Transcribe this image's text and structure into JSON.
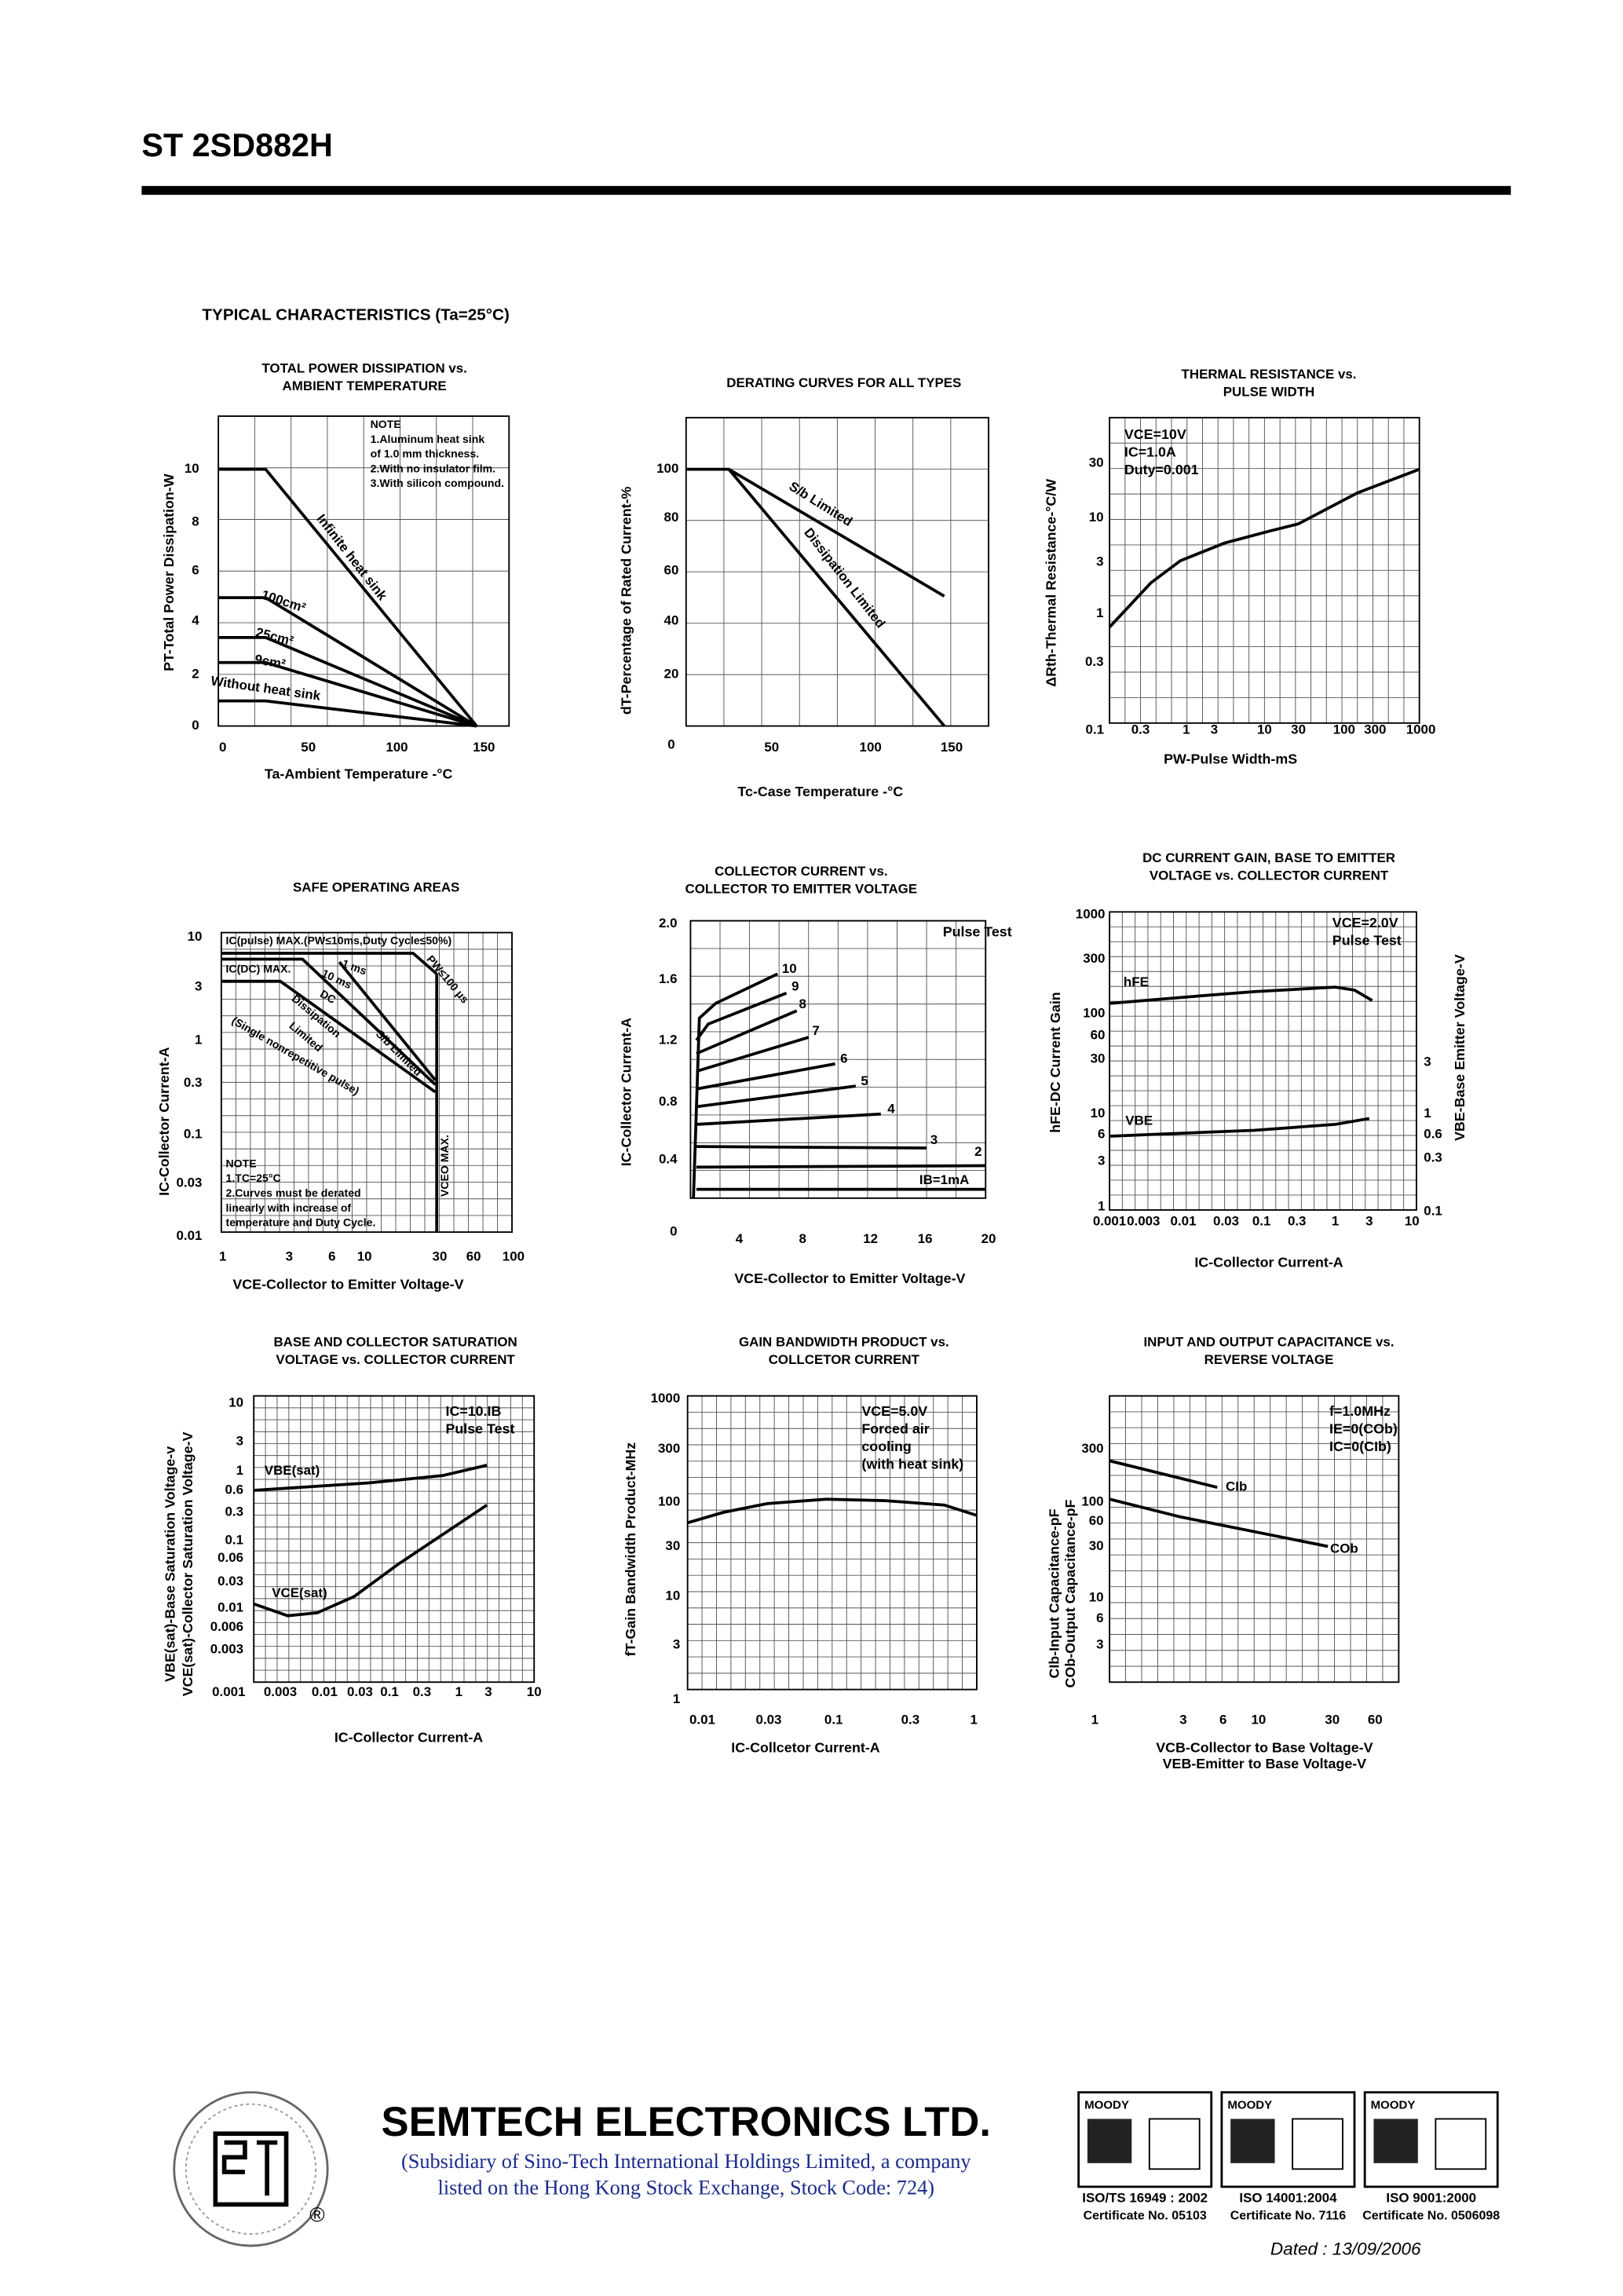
{
  "header": {
    "title": "ST 2SD882H"
  },
  "section_title": "TYPICAL CHARACTERISTICS (Ta=25°C)",
  "charts": [
    {
      "title": [
        "TOTAL POWER DISSIPATION vs.",
        "AMBIENT TEMPERATURE"
      ],
      "ylabel": [
        "PT-Total Power Dissipation-W"
      ],
      "xlabel": [
        "Ta-Ambient Temperature -°C"
      ],
      "xticks": [
        "0",
        "50",
        "100",
        "150"
      ],
      "yticks": [
        "10",
        "8",
        "6",
        "4",
        "2",
        "0"
      ],
      "notes": [
        "NOTE",
        "1.Aluminum heat sink",
        "  of 1.0 mm thickness.",
        "2.With no insulator film.",
        "3.With silicon compound."
      ],
      "labels": [
        "Infinite heat sink",
        "100cm²",
        "25cm²",
        "9cm²",
        "Without  heat sink"
      ]
    },
    {
      "title": [
        "DERATING CURVES FOR ALL TYPES"
      ],
      "ylabel": [
        "dT-Percentage of Rated Current-%"
      ],
      "xlabel": [
        "Tc-Case Temperature -°C"
      ],
      "xticks": [
        "0",
        "50",
        "100",
        "150"
      ],
      "yticks": [
        "100",
        "80",
        "60",
        "40",
        "20"
      ],
      "notes": [],
      "labels": [
        "S/b Limited",
        "Dissipation Limited"
      ]
    },
    {
      "title": [
        "THERMAL RESISTANCE vs.",
        "PULSE WIDTH"
      ],
      "ylabel": [
        "ΔRth-Thermal Resistance-°C/W"
      ],
      "xlabel": [
        "PW-Pulse Width-mS"
      ],
      "xticks": [
        "0.1",
        "0.3",
        "1",
        "3",
        "10",
        "30",
        "100",
        "300",
        "1000"
      ],
      "yticks": [
        "30",
        "10",
        "3",
        "1",
        "0.3"
      ],
      "notes": [
        "VCE=10V",
        "IC=1.0A",
        "Duty=0.001"
      ],
      "labels": []
    },
    {
      "title": [
        "SAFE OPERATING AREAS"
      ],
      "ylabel": [
        "IC-Collector Current-A"
      ],
      "xlabel": [
        "VCE-Collector to Emitter Voltage-V"
      ],
      "xticks": [
        "1",
        "3",
        "6",
        "10",
        "30",
        "60",
        "100"
      ],
      "yticks": [
        "10",
        "3",
        "1",
        "0.3",
        "0.1",
        "0.03",
        "0.01"
      ],
      "notes": [
        "NOTE",
        "1.TC=25°C",
        "2.Curves must be derated",
        "  linearly with increase of",
        "  temperature and Duty Cycle."
      ],
      "labels": [
        "IC(pulse) MAX.(PW≤10ms,Duty Cycle≤50%)",
        "IC(DC) MAX.",
        "1 ms",
        "10 ms",
        "DC",
        "Dissipation",
        "Limited",
        "S/b Limited",
        "PW≤100 μs",
        "(Single nonrepetitive pulse)",
        "VCEO MAX."
      ]
    },
    {
      "title": [
        "COLLECTOR CURRENT vs.",
        "COLLECTOR TO EMITTER VOLTAGE"
      ],
      "ylabel": [
        "IC-Collector Current-A"
      ],
      "xlabel": [
        "VCE-Collector to Emitter Voltage-V"
      ],
      "xticks": [
        "4",
        "8",
        "12",
        "16",
        "20"
      ],
      "yticks": [
        "2.0",
        "1.6",
        "1.2",
        "0.8",
        "0.4",
        "0"
      ],
      "notes": [
        "Pulse Test"
      ],
      "labels": [
        "10",
        "9",
        "8",
        "7",
        "6",
        "5",
        "4",
        "3",
        "2",
        "IB=1mA"
      ]
    },
    {
      "title": [
        "DC CURRENT GAIN, BASE TO EMITTER",
        "VOLTAGE vs. COLLECTOR CURRENT"
      ],
      "ylabel": [
        "hFE-DC Current Gain",
        "VBE-Base Emitter Voltage-V"
      ],
      "xlabel": [
        "IC-Collector Current-A"
      ],
      "xticks": [
        "0.001",
        "0.003",
        "0.01",
        "0.03",
        "0.1",
        "0.3",
        "1",
        "3",
        "10"
      ],
      "yticks": [
        "1000",
        "300",
        "100",
        "60",
        "30",
        "10",
        "6",
        "3",
        "1"
      ],
      "y2ticks": [
        "3",
        "1",
        "0.6",
        "0.3",
        "0.1"
      ],
      "notes": [
        "VCE=2.0V",
        "Pulse Test"
      ],
      "labels": [
        "hFE",
        "VBE"
      ]
    },
    {
      "title": [
        "BASE AND COLLECTOR SATURATION",
        "VOLTAGE vs. COLLECTOR CURRENT"
      ],
      "ylabel": [
        "VBE(sat)-Base Saturation Voltage-v",
        "VCE(sat)-Collector Saturation Voltage-V"
      ],
      "xlabel": [
        "IC-Collector Current-A"
      ],
      "xticks": [
        "0.001",
        "0.003",
        "0.01",
        "0.03",
        "0.1",
        "0.3",
        "1",
        "3",
        "10"
      ],
      "yticks": [
        "10",
        "3",
        "1",
        "0.6",
        "0.3",
        "0.1",
        "0.06",
        "0.03",
        "0.01",
        "0.006",
        "0.003"
      ],
      "notes": [
        "IC=10.IB",
        "Pulse Test"
      ],
      "labels": [
        "VBE(sat)",
        "VCE(sat)"
      ]
    },
    {
      "title": [
        "GAIN BANDWIDTH PRODUCT vs.",
        "COLLCETOR CURRENT"
      ],
      "ylabel": [
        "fT-Gain Bandwidth Product-MHz"
      ],
      "xlabel": [
        "IC-Collcetor Current-A"
      ],
      "xticks": [
        "0.01",
        "0.03",
        "0.1",
        "0.3",
        "1"
      ],
      "yticks": [
        "1000",
        "300",
        "100",
        "30",
        "10",
        "3",
        "1"
      ],
      "notes": [
        "VCE=5.0V",
        "Forced air",
        "cooling",
        "(with heat sink)"
      ],
      "labels": []
    },
    {
      "title": [
        "INPUT AND OUTPUT CAPACITANCE vs.",
        "REVERSE VOLTAGE"
      ],
      "ylabel": [
        "CIb-Input Capacitance-pF",
        "COb-Output Capacitance-pF"
      ],
      "xlabel": [
        "VCB-Collector to Base Voltage-V",
        "VEB-Emitter to Base Voltage-V"
      ],
      "xticks": [
        "1",
        "3",
        "6",
        "10",
        "30",
        "60"
      ],
      "yticks": [
        "300",
        "100",
        "60",
        "30",
        "10",
        "6",
        "3"
      ],
      "notes": [
        "f=1.0MHz",
        "IE=0(COb)",
        "IC=0(CIb)"
      ],
      "labels": [
        "CIb",
        "COb"
      ]
    }
  ],
  "footer": {
    "company": "SEMTECH ELECTRONICS LTD.",
    "subsidiary": [
      "(Subsidiary of Sino-Tech International Holdings Limited, a company",
      "listed on the Hong Kong Stock Exchange, Stock Code: 724)"
    ],
    "registered": "®",
    "certs": [
      {
        "brand": "MOODY",
        "standard": "ISO/TS 16949 : 2002",
        "certificate": "Certificate No. 05103"
      },
      {
        "brand": "MOODY",
        "standard": "ISO 14001:2004",
        "certificate": "Certificate No. 7116"
      },
      {
        "brand": "MOODY",
        "standard": "ISO 9001:2000",
        "certificate": "Certificate No. 0506098"
      }
    ],
    "dated": "Dated : 13/09/2006"
  }
}
